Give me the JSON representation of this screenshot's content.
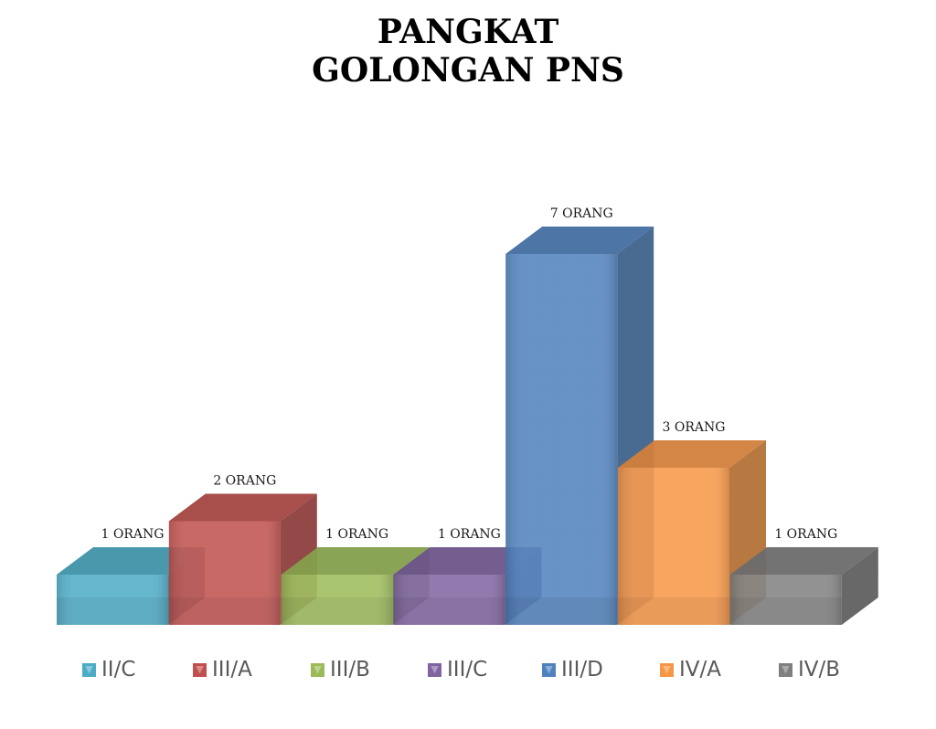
{
  "chart_data": {
    "type": "bar",
    "title_lines": [
      "PANGKAT",
      "GOLONGAN PNS"
    ],
    "categories": [
      "II/C",
      "III/A",
      "III/B",
      "III/C",
      "III/D",
      "IV/A",
      "IV/B"
    ],
    "values": [
      1,
      2,
      1,
      1,
      7,
      3,
      1
    ],
    "data_labels": [
      "1 ORANG",
      "2 ORANG",
      "1 ORANG",
      "1  ORANG",
      "7 ORANG",
      "3 ORANG",
      "1 ORANG"
    ],
    "colors": [
      "#4bacc6",
      "#c0504d",
      "#9bbb59",
      "#8064a2",
      "#4f81bd",
      "#f79646",
      "#7f7f7f"
    ],
    "ylim": [
      0,
      7
    ],
    "three_d": true,
    "grid": false,
    "legend_position": "bottom"
  }
}
